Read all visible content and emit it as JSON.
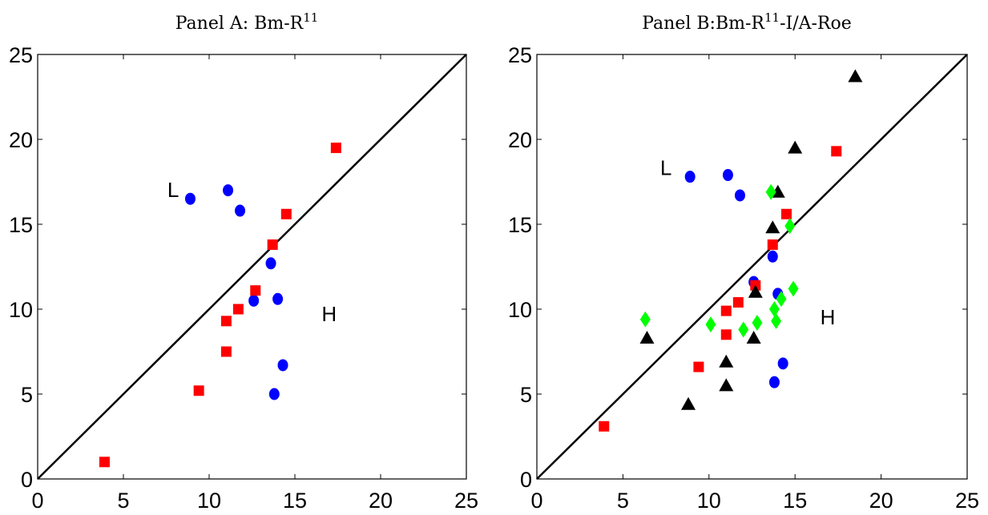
{
  "panels": [
    {
      "title": "Panel A: Bm-R",
      "title_sup": "11"
    },
    {
      "title": "Panel B:Bm-R",
      "title_sup": "11",
      "title_suffix": "-I/A-Roe"
    }
  ],
  "chart_data": [
    {
      "type": "scatter",
      "title": "Panel A: Bm-R11",
      "xlim": [
        0,
        25
      ],
      "ylim": [
        0,
        25
      ],
      "xticks": [
        0,
        5,
        10,
        15,
        20,
        25
      ],
      "yticks": [
        0,
        5,
        10,
        15,
        20,
        25
      ],
      "grid": false,
      "diagonal_line": true,
      "annotations": [
        {
          "text": "L",
          "x": 7.9,
          "y": 16.6
        },
        {
          "text": "H",
          "x": 17.0,
          "y": 9.3
        }
      ],
      "series": [
        {
          "marker": "circle",
          "color": "#0000ff",
          "points": [
            [
              8.9,
              16.5
            ],
            [
              11.1,
              17.0
            ],
            [
              11.8,
              15.8
            ],
            [
              13.6,
              12.7
            ],
            [
              12.6,
              10.5
            ],
            [
              14.0,
              10.6
            ],
            [
              14.3,
              6.7
            ],
            [
              13.8,
              5.0
            ]
          ]
        },
        {
          "marker": "square",
          "color": "#ff0000",
          "points": [
            [
              3.9,
              1.0
            ],
            [
              9.4,
              5.2
            ],
            [
              11.0,
              7.5
            ],
            [
              11.0,
              9.3
            ],
            [
              11.7,
              10.0
            ],
            [
              12.7,
              11.1
            ],
            [
              13.7,
              13.8
            ],
            [
              14.5,
              15.6
            ],
            [
              17.4,
              19.5
            ]
          ]
        }
      ]
    },
    {
      "type": "scatter",
      "title": "Panel B:Bm-R11-I/A-Roe",
      "xlim": [
        0,
        25
      ],
      "ylim": [
        0,
        25
      ],
      "xticks": [
        0,
        5,
        10,
        15,
        20,
        25
      ],
      "yticks": [
        0,
        5,
        10,
        15,
        20,
        25
      ],
      "grid": false,
      "diagonal_line": true,
      "annotations": [
        {
          "text": "L",
          "x": 7.5,
          "y": 17.9
        },
        {
          "text": "H",
          "x": 16.9,
          "y": 9.1
        }
      ],
      "series": [
        {
          "marker": "circle",
          "color": "#0000ff",
          "points": [
            [
              8.9,
              17.8
            ],
            [
              11.1,
              17.9
            ],
            [
              11.8,
              16.7
            ],
            [
              13.7,
              13.1
            ],
            [
              12.6,
              11.6
            ],
            [
              14.0,
              10.9
            ],
            [
              14.3,
              6.8
            ],
            [
              13.8,
              5.7
            ]
          ]
        },
        {
          "marker": "square",
          "color": "#ff0000",
          "points": [
            [
              3.9,
              3.1
            ],
            [
              9.4,
              6.6
            ],
            [
              11.0,
              8.5
            ],
            [
              11.0,
              9.9
            ],
            [
              11.7,
              10.4
            ],
            [
              12.7,
              11.4
            ],
            [
              13.7,
              13.8
            ],
            [
              14.5,
              15.6
            ],
            [
              17.4,
              19.3
            ]
          ]
        },
        {
          "marker": "triangle",
          "color": "#000000",
          "points": [
            [
              6.4,
              8.3
            ],
            [
              8.8,
              4.4
            ],
            [
              11.0,
              6.9
            ],
            [
              11.0,
              5.5
            ],
            [
              12.6,
              8.3
            ],
            [
              12.7,
              11.0
            ],
            [
              13.7,
              14.8
            ],
            [
              14.0,
              16.9
            ],
            [
              15.0,
              19.5
            ],
            [
              18.5,
              23.7
            ]
          ]
        },
        {
          "marker": "diamond",
          "color": "#00ff00",
          "points": [
            [
              6.3,
              9.4
            ],
            [
              10.1,
              9.1
            ],
            [
              12.0,
              8.8
            ],
            [
              12.8,
              9.2
            ],
            [
              13.9,
              9.3
            ],
            [
              13.8,
              10.0
            ],
            [
              14.2,
              10.6
            ],
            [
              14.9,
              11.2
            ],
            [
              13.6,
              16.9
            ],
            [
              14.7,
              14.9
            ]
          ]
        }
      ]
    }
  ]
}
